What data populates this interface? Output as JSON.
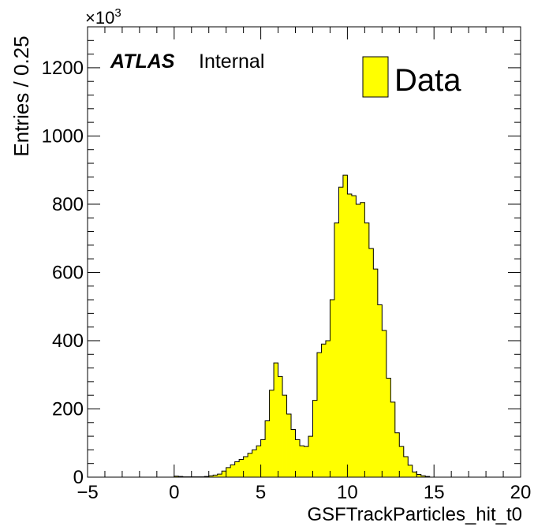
{
  "chart_data": {
    "type": "histogram",
    "title": "",
    "xlabel": "GSFTrackParticles_hit_t0",
    "ylabel": "Entries / 0.25",
    "y_multiplier_label": "×10",
    "y_multiplier_exponent": "3",
    "xlim": [
      -5,
      20
    ],
    "ylim": [
      0,
      1320
    ],
    "x_ticks": [
      -5,
      0,
      5,
      10,
      15,
      20
    ],
    "x_tick_labels": [
      "−5",
      "0",
      "5",
      "10",
      "15",
      "20"
    ],
    "y_ticks": [
      0,
      200,
      400,
      600,
      800,
      1000,
      1200
    ],
    "y_tick_labels": [
      "0",
      "200",
      "400",
      "600",
      "800",
      "1000",
      "1200"
    ],
    "bin_width": 0.25,
    "bin_start": 0,
    "series": [
      {
        "name": "Data",
        "color": "#ffff00",
        "values": [
          3,
          2,
          1,
          1,
          1,
          1,
          1,
          2,
          4,
          6,
          9,
          18,
          28,
          36,
          45,
          52,
          60,
          70,
          80,
          92,
          110,
          165,
          255,
          335,
          295,
          240,
          185,
          140,
          110,
          92,
          90,
          120,
          225,
          365,
          390,
          400,
          520,
          745,
          850,
          885,
          830,
          825,
          800,
          805,
          745,
          670,
          610,
          505,
          430,
          290,
          220,
          130,
          90,
          60,
          35,
          15,
          8,
          4,
          2
        ]
      }
    ]
  },
  "annotations": {
    "atlas_label": "ATLAS",
    "internal_label": "Internal",
    "legend_label": "Data",
    "legend_color": "#ffff00"
  }
}
